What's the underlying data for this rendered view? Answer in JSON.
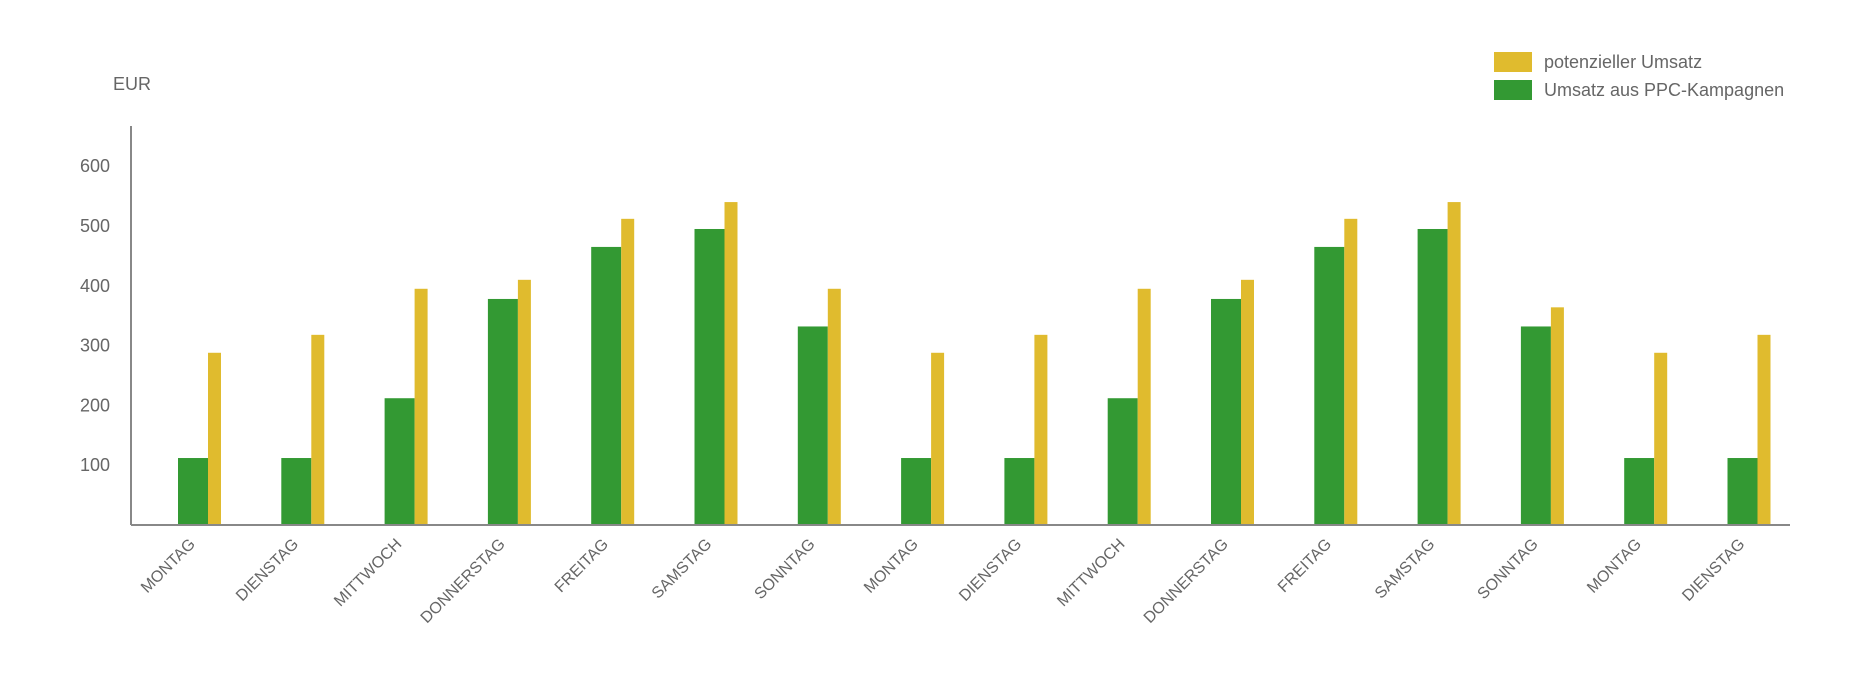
{
  "chart_data": {
    "type": "bar",
    "ylabel": "EUR",
    "xlabel": "",
    "ylim": [
      0,
      650
    ],
    "yticks": [
      100,
      200,
      300,
      400,
      500,
      600
    ],
    "legend_position": "top-right",
    "grid": false,
    "categories": [
      "MONTAG",
      "DIENSTAG",
      "MITTWOCH",
      "DONNERSTAG",
      "FREITAG",
      "SAMSTAG",
      "SONNTAG",
      "MONTAG",
      "DIENSTAG",
      "MITTWOCH",
      "DONNERSTAG",
      "FREITAG",
      "SAMSTAG",
      "SONNTAG",
      "MONTAG",
      "DIENSTAG"
    ],
    "series": [
      {
        "name": "Umsatz aus PPC-Kampagnen",
        "color": "#339933",
        "values": [
          112,
          112,
          212,
          378,
          465,
          495,
          332,
          112,
          112,
          212,
          378,
          465,
          495,
          332,
          112,
          112
        ]
      },
      {
        "name": "potenzieller Umsatz",
        "color": "#e0bb2e",
        "values": [
          288,
          318,
          395,
          410,
          512,
          540,
          395,
          288,
          318,
          395,
          410,
          512,
          540,
          364,
          288,
          318
        ]
      }
    ]
  },
  "legend": {
    "items": [
      {
        "label": "potenzieller Umsatz",
        "color": "#e0bb2e"
      },
      {
        "label": "Umsatz aus PPC-Kampagnen",
        "color": "#339933"
      }
    ]
  }
}
